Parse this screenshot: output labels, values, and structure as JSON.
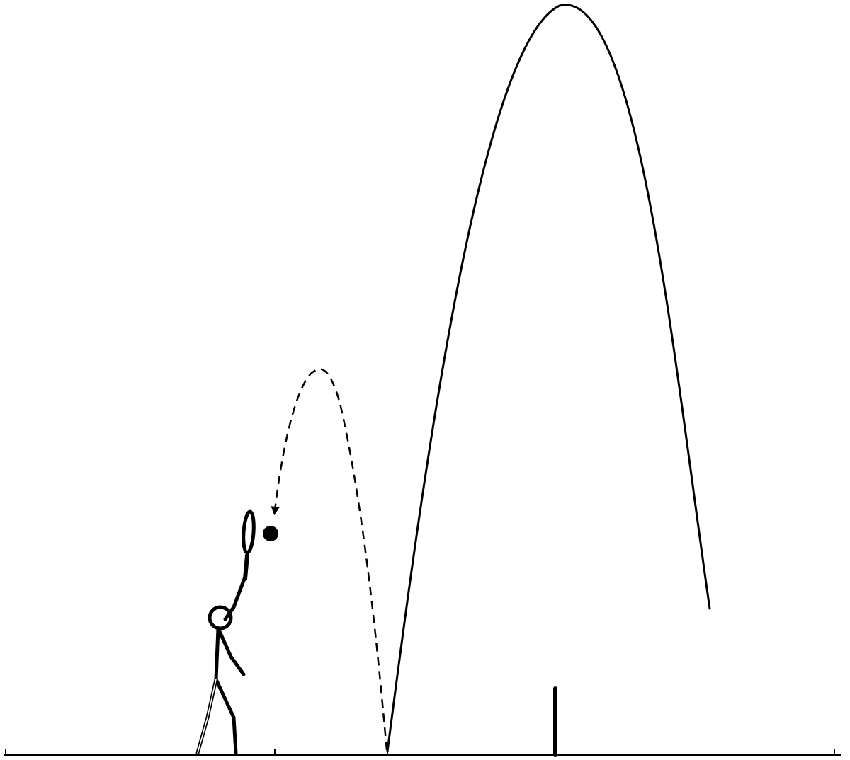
{
  "diagram": {
    "elements": [
      "ground-line",
      "court-mark-ticks",
      "net-post",
      "stick-figure-player",
      "racket",
      "ball",
      "incoming-ball-arc-dashed",
      "outgoing-ball-arc-solid"
    ]
  },
  "colors": {
    "ink": "#000000",
    "background": "#ffffff"
  }
}
